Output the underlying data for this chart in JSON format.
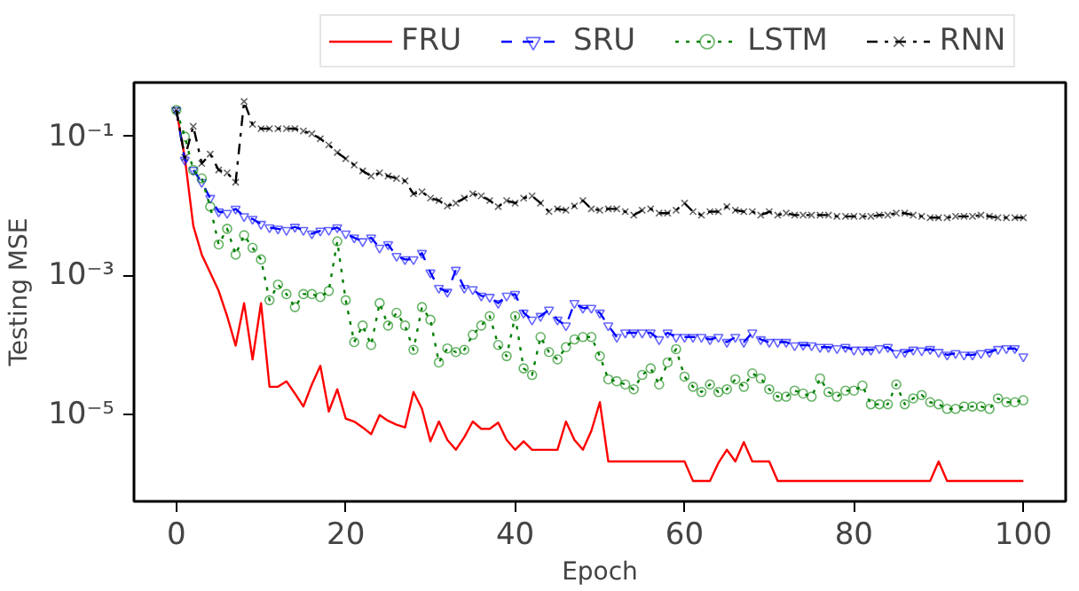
{
  "chart_data": {
    "type": "line",
    "xlabel": "Epoch",
    "ylabel": "Testing MSE",
    "log": "y",
    "grid": false,
    "legend": "top",
    "xlim": [
      -5,
      105
    ],
    "xticks": [
      0,
      20,
      40,
      60,
      80,
      100
    ],
    "ylim": [
      5.6e-07,
      0.6
    ],
    "yticks": [
      {
        "value": 0.1,
        "label": "10⁻¹"
      },
      {
        "value": 0.001,
        "label": "10⁻³"
      },
      {
        "value": 1e-05,
        "label": "10⁻⁵"
      }
    ],
    "x": [
      0,
      1,
      2,
      3,
      4,
      5,
      6,
      7,
      8,
      9,
      10,
      11,
      12,
      13,
      14,
      15,
      16,
      17,
      18,
      19,
      20,
      21,
      22,
      23,
      24,
      25,
      26,
      27,
      28,
      29,
      30,
      31,
      32,
      33,
      34,
      35,
      36,
      37,
      38,
      39,
      40,
      41,
      42,
      43,
      44,
      45,
      46,
      47,
      48,
      49,
      50,
      51,
      52,
      53,
      54,
      55,
      56,
      57,
      58,
      59,
      60,
      61,
      62,
      63,
      64,
      65,
      66,
      67,
      68,
      69,
      70,
      71,
      72,
      73,
      74,
      75,
      76,
      77,
      78,
      79,
      80,
      81,
      82,
      83,
      84,
      85,
      86,
      87,
      88,
      89,
      90,
      91,
      92,
      93,
      94,
      95,
      96,
      97,
      98,
      99,
      100
    ],
    "series": [
      {
        "name": "FRU",
        "color": "#ff0000",
        "marker": "none",
        "line_style": "solid",
        "values": [
          0.24,
          0.05,
          0.0052,
          0.002,
          0.0011,
          0.0006,
          0.00026,
          9.8e-05,
          0.0004,
          6.2e-05,
          0.0004,
          2.5e-05,
          2.5e-05,
          3e-05,
          2e-05,
          1.3e-05,
          2.7e-05,
          5e-05,
          1.1e-05,
          2.3e-05,
          8.7e-06,
          7.9e-06,
          6.5e-06,
          5.2e-06,
          9.8e-06,
          8.1e-06,
          7.1e-06,
          6.5e-06,
          2.1e-05,
          1.2e-05,
          4.1e-06,
          7.9e-06,
          4.3e-06,
          3.1e-06,
          4.7e-06,
          7.9e-06,
          6.2e-06,
          6.2e-06,
          7.6e-06,
          4.3e-06,
          3.1e-06,
          4.1e-06,
          3.1e-06,
          3.1e-06,
          3.1e-06,
          3.1e-06,
          7.9e-06,
          4.3e-06,
          3.1e-06,
          5.8e-06,
          1.5e-05,
          2.1e-06,
          2.1e-06,
          2.1e-06,
          2.1e-06,
          2.1e-06,
          2.1e-06,
          2.1e-06,
          2.1e-06,
          2.1e-06,
          2.1e-06,
          1.1e-06,
          1.1e-06,
          1.1e-06,
          2e-06,
          3.1e-06,
          2.1e-06,
          4e-06,
          2.1e-06,
          2.1e-06,
          2.1e-06,
          1.1e-06,
          1.1e-06,
          1.1e-06,
          1.1e-06,
          1.1e-06,
          1.1e-06,
          1.1e-06,
          1.1e-06,
          1.1e-06,
          1.1e-06,
          1.1e-06,
          1.1e-06,
          1.1e-06,
          1.1e-06,
          1.1e-06,
          1.1e-06,
          1.1e-06,
          1.1e-06,
          1.1e-06,
          2.1e-06,
          1.1e-06,
          1.1e-06,
          1.1e-06,
          1.1e-06,
          1.1e-06,
          1.1e-06,
          1.1e-06,
          1.1e-06,
          1.1e-06,
          1.1e-06
        ]
      },
      {
        "name": "SRU",
        "color": "#0000ff",
        "marker": "triangle",
        "line_style": "dashed",
        "values": [
          0.24,
          0.046,
          0.033,
          0.022,
          0.013,
          0.0083,
          0.0079,
          0.0091,
          0.0071,
          0.0065,
          0.0055,
          0.0049,
          0.0047,
          0.0045,
          0.005,
          0.0045,
          0.004,
          0.0044,
          0.0045,
          0.0049,
          0.004,
          0.0035,
          0.0031,
          0.0035,
          0.0025,
          0.0028,
          0.0019,
          0.0017,
          0.0017,
          0.0021,
          0.0011,
          0.00066,
          0.00058,
          0.0012,
          0.00066,
          0.00063,
          0.00051,
          0.00049,
          0.0004,
          0.00051,
          0.00054,
          0.00029,
          0.00023,
          0.00026,
          0.00032,
          0.00023,
          0.00019,
          0.0004,
          0.00034,
          0.00034,
          0.00029,
          0.00019,
          0.00013,
          0.00015,
          0.00015,
          0.00015,
          0.00015,
          0.00012,
          0.00015,
          0.00013,
          0.00013,
          0.00013,
          0.00013,
          0.00012,
          0.00013,
          0.00011,
          0.00013,
          0.00011,
          0.00015,
          0.00012,
          0.00011,
          0.00011,
          0.00011,
          9.8e-05,
          0.0001,
          9.8e-05,
          9.3e-05,
          9.3e-05,
          8.9e-05,
          9.3e-05,
          8.5e-05,
          8.5e-05,
          8.5e-05,
          8.9e-05,
          9.3e-05,
          7.6e-05,
          7.9e-05,
          8.5e-05,
          8.3e-05,
          8.7e-05,
          7.9e-05,
          7.2e-05,
          7.6e-05,
          7.2e-05,
          7.2e-05,
          7.6e-05,
          7.9e-05,
          8.7e-05,
          8.9e-05,
          8.9e-05,
          6.8e-05
        ]
      },
      {
        "name": "LSTM",
        "color": "#008000",
        "marker": "circle",
        "line_style": "dotted",
        "values": [
          0.24,
          0.1,
          0.033,
          0.025,
          0.0098,
          0.0028,
          0.0047,
          0.002,
          0.0038,
          0.0025,
          0.0017,
          0.00044,
          0.00074,
          0.00054,
          0.00035,
          0.00054,
          0.00054,
          0.00049,
          0.0006,
          0.0031,
          0.00044,
          0.00011,
          0.00019,
          0.0001,
          0.0004,
          0.00019,
          0.00029,
          0.00019,
          8.5e-05,
          0.00035,
          0.00023,
          5.6e-05,
          8.9e-05,
          7.9e-05,
          8.5e-05,
          0.00014,
          0.00019,
          0.00026,
          0.0001,
          6.9e-05,
          0.00026,
          4.6e-05,
          3.7e-05,
          0.00013,
          7.9e-05,
          6.2e-05,
          9.3e-05,
          0.00012,
          0.00013,
          0.00013,
          6.9e-05,
          3.2e-05,
          3e-05,
          2.7e-05,
          2.3e-05,
          3.7e-05,
          4.6e-05,
          2.7e-05,
          5.6e-05,
          8.7e-05,
          3.5e-05,
          2.5e-05,
          2.1e-05,
          2.7e-05,
          2.1e-05,
          2.3e-05,
          3.2e-05,
          2.5e-05,
          3.9e-05,
          3.3e-05,
          2.3e-05,
          1.8e-05,
          1.8e-05,
          2.2e-05,
          2e-05,
          1.8e-05,
          3.3e-05,
          2.1e-05,
          1.8e-05,
          2.2e-05,
          2.2e-05,
          2.6e-05,
          1.4e-05,
          1.4e-05,
          1.4e-05,
          2.7e-05,
          1.4e-05,
          1.7e-05,
          1.9e-05,
          1.5e-05,
          1.4e-05,
          1.2e-05,
          1.2e-05,
          1.3e-05,
          1.3e-05,
          1.3e-05,
          1.2e-05,
          1.7e-05,
          1.5e-05,
          1.5e-05,
          1.6e-05
        ]
      },
      {
        "name": "RNN",
        "color": "#000000",
        "marker": "cross",
        "line_style": "dashdot",
        "values": [
          0.24,
          0.05,
          0.14,
          0.041,
          0.056,
          0.033,
          0.03,
          0.022,
          0.32,
          0.15,
          0.13,
          0.13,
          0.13,
          0.13,
          0.13,
          0.12,
          0.11,
          0.093,
          0.076,
          0.059,
          0.048,
          0.039,
          0.032,
          0.027,
          0.03,
          0.027,
          0.025,
          0.023,
          0.015,
          0.016,
          0.013,
          0.012,
          0.01,
          0.011,
          0.013,
          0.015,
          0.014,
          0.012,
          0.0098,
          0.012,
          0.011,
          0.013,
          0.014,
          0.011,
          0.0083,
          0.0091,
          0.0087,
          0.01,
          0.012,
          0.0091,
          0.0087,
          0.0091,
          0.0091,
          0.0083,
          0.0074,
          0.0087,
          0.0091,
          0.0079,
          0.0079,
          0.0087,
          0.011,
          0.0083,
          0.0074,
          0.0083,
          0.0083,
          0.0098,
          0.0087,
          0.0083,
          0.0083,
          0.0074,
          0.0083,
          0.0074,
          0.0079,
          0.0074,
          0.0074,
          0.0074,
          0.0074,
          0.0074,
          0.0071,
          0.0071,
          0.0071,
          0.0071,
          0.0071,
          0.0074,
          0.0074,
          0.0079,
          0.0079,
          0.0074,
          0.0071,
          0.0068,
          0.0068,
          0.0068,
          0.0071,
          0.0071,
          0.0071,
          0.0074,
          0.0071,
          0.0068,
          0.0068,
          0.0068,
          0.0068
        ]
      }
    ]
  }
}
